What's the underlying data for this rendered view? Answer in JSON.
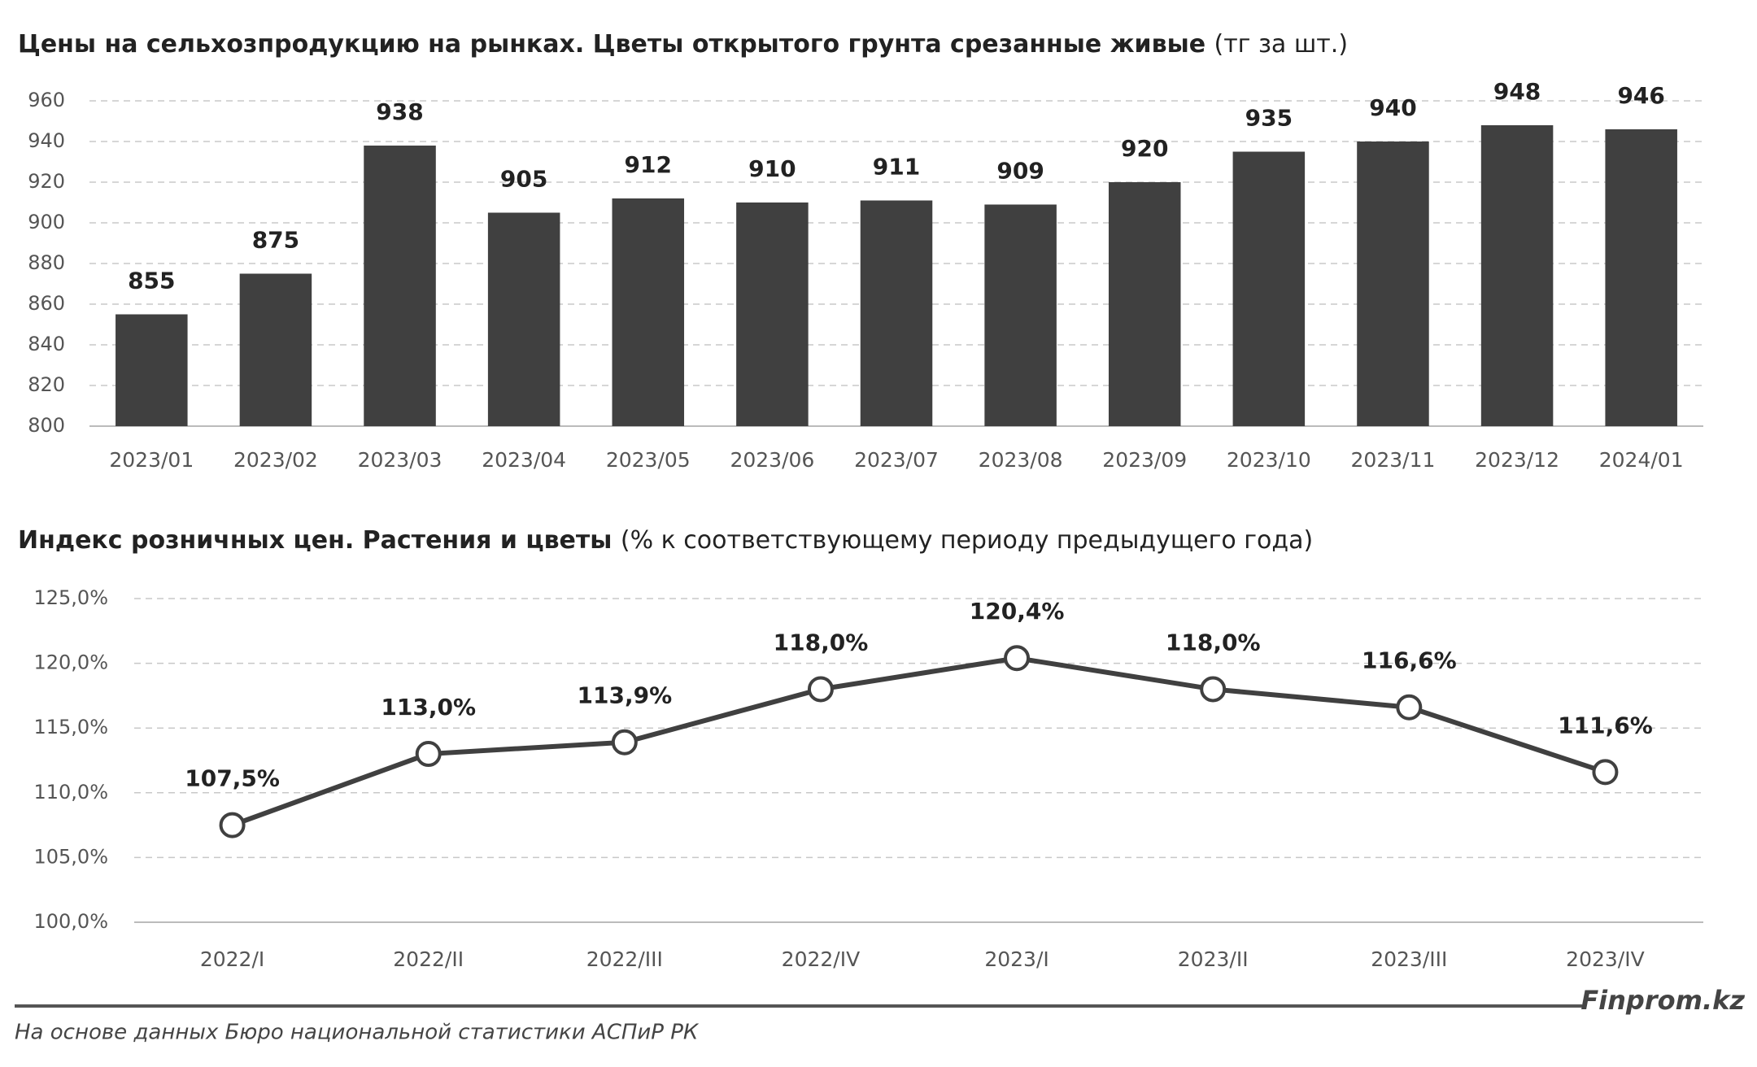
{
  "chart_data": [
    {
      "type": "bar",
      "title": "Цены на сельхозпродукцию на рынках. Цветы открытого грунта срезанные живые",
      "subtitle": "(тг за шт.)",
      "categories": [
        "2023/01",
        "2023/02",
        "2023/03",
        "2023/04",
        "2023/05",
        "2023/06",
        "2023/07",
        "2023/08",
        "2023/09",
        "2023/10",
        "2023/11",
        "2023/12",
        "2024/01"
      ],
      "values": [
        855,
        875,
        938,
        905,
        912,
        910,
        911,
        909,
        920,
        935,
        940,
        948,
        946
      ],
      "color": "#404040",
      "ylim": [
        800,
        960
      ],
      "yticks": [
        800,
        820,
        840,
        860,
        880,
        900,
        920,
        940,
        960
      ],
      "grid": true
    },
    {
      "type": "line",
      "title": "Индекс розничных цен. Растения и цветы",
      "subtitle": "(% к соответствующему периоду предыдущего года)",
      "categories": [
        "2022/I",
        "2022/II",
        "2022/III",
        "2022/IV",
        "2023/I",
        "2023/II",
        "2023/III",
        "2023/IV"
      ],
      "values": [
        107.5,
        113.0,
        113.9,
        118.0,
        120.4,
        118.0,
        116.6,
        111.6
      ],
      "value_labels": [
        "107,5%",
        "113,0%",
        "113,9%",
        "118,0%",
        "120,4%",
        "118,0%",
        "116,6%",
        "111,6%"
      ],
      "color": "#404040",
      "ylim": [
        100,
        125
      ],
      "yticks": [
        {
          "value": 100,
          "label": "100,0%"
        },
        {
          "value": 105,
          "label": "105,0%"
        },
        {
          "value": 110,
          "label": "110,0%"
        },
        {
          "value": 115,
          "label": "115,0%"
        },
        {
          "value": 120,
          "label": "120,0%"
        },
        {
          "value": 125,
          "label": "125,0%"
        }
      ],
      "grid": true
    }
  ],
  "footer": {
    "source": "На основе данных Бюро национальной статистики АСПиР РК",
    "brand": "Finprom.kz"
  }
}
